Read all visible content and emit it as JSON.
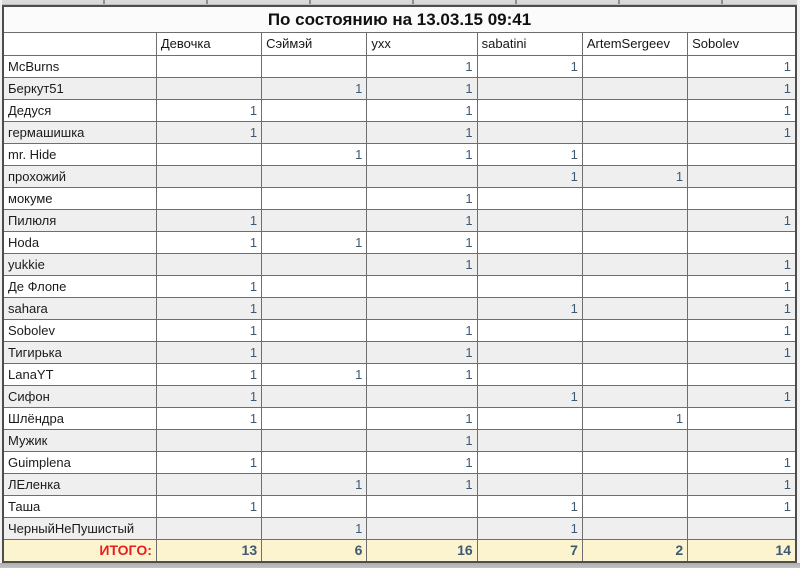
{
  "title": "По состоянию на 13.03.15 09:41",
  "columns": [
    "Девочка",
    "Сэймэй",
    "ухх",
    "sabatini",
    "ArtemSergeev",
    "Sobolev"
  ],
  "rows": [
    {
      "name": "McBurns",
      "values": [
        "",
        "",
        "1",
        "1",
        "",
        "1"
      ]
    },
    {
      "name": "Беркут51",
      "values": [
        "",
        "1",
        "1",
        "",
        "",
        "1"
      ]
    },
    {
      "name": "Дедуся",
      "values": [
        "1",
        "",
        "1",
        "",
        "",
        "1"
      ]
    },
    {
      "name": "гермашишка",
      "values": [
        "1",
        "",
        "1",
        "",
        "",
        "1"
      ]
    },
    {
      "name": "mr. Hide",
      "values": [
        "",
        "1",
        "1",
        "1",
        "",
        ""
      ]
    },
    {
      "name": "прохожий",
      "values": [
        "",
        "",
        "",
        "1",
        "1",
        ""
      ]
    },
    {
      "name": "мокуме",
      "values": [
        "",
        "",
        "1",
        "",
        "",
        ""
      ]
    },
    {
      "name": "Пилюля",
      "values": [
        "1",
        "",
        "1",
        "",
        "",
        "1"
      ]
    },
    {
      "name": "Hoda",
      "values": [
        "1",
        "1",
        "1",
        "",
        "",
        ""
      ]
    },
    {
      "name": "yukkie",
      "values": [
        "",
        "",
        "1",
        "",
        "",
        "1"
      ]
    },
    {
      "name": "Де Флопе",
      "values": [
        "1",
        "",
        "",
        "",
        "",
        "1"
      ]
    },
    {
      "name": "sahara",
      "values": [
        "1",
        "",
        "",
        "1",
        "",
        "1"
      ]
    },
    {
      "name": "Sobolev",
      "values": [
        "1",
        "",
        "1",
        "",
        "",
        "1"
      ]
    },
    {
      "name": "Тигирька",
      "values": [
        "1",
        "",
        "1",
        "",
        "",
        "1"
      ]
    },
    {
      "name": "LanaYT",
      "values": [
        "1",
        "1",
        "1",
        "",
        "",
        ""
      ]
    },
    {
      "name": "Сифон",
      "values": [
        "1",
        "",
        "",
        "1",
        "",
        "1"
      ]
    },
    {
      "name": "Шлёндра",
      "values": [
        "1",
        "",
        "1",
        "",
        "1",
        ""
      ]
    },
    {
      "name": "Мужик",
      "values": [
        "",
        "",
        "1",
        "",
        "",
        ""
      ]
    },
    {
      "name": "Guimplena",
      "values": [
        "1",
        "",
        "1",
        "",
        "",
        "1"
      ]
    },
    {
      "name": "ЛЕленка",
      "values": [
        "",
        "1",
        "1",
        "",
        "",
        "1"
      ]
    },
    {
      "name": "Таша",
      "values": [
        "1",
        "",
        "",
        "1",
        "",
        "1"
      ]
    },
    {
      "name": "ЧерныйНеПушистый",
      "values": [
        "",
        "1",
        "",
        "1",
        "",
        ""
      ]
    }
  ],
  "totals": {
    "label": "ИТОГО:",
    "values": [
      "13",
      "6",
      "16",
      "7",
      "2",
      "14"
    ]
  },
  "colors": {
    "totals-red": "#e81f1f",
    "totals-bg": "#fcf3cf",
    "alt-row-bg": "#efefef",
    "value-color": "#3d5a75",
    "border-inner": "#6e6e6e",
    "border-outer": "#4d4d4d"
  }
}
